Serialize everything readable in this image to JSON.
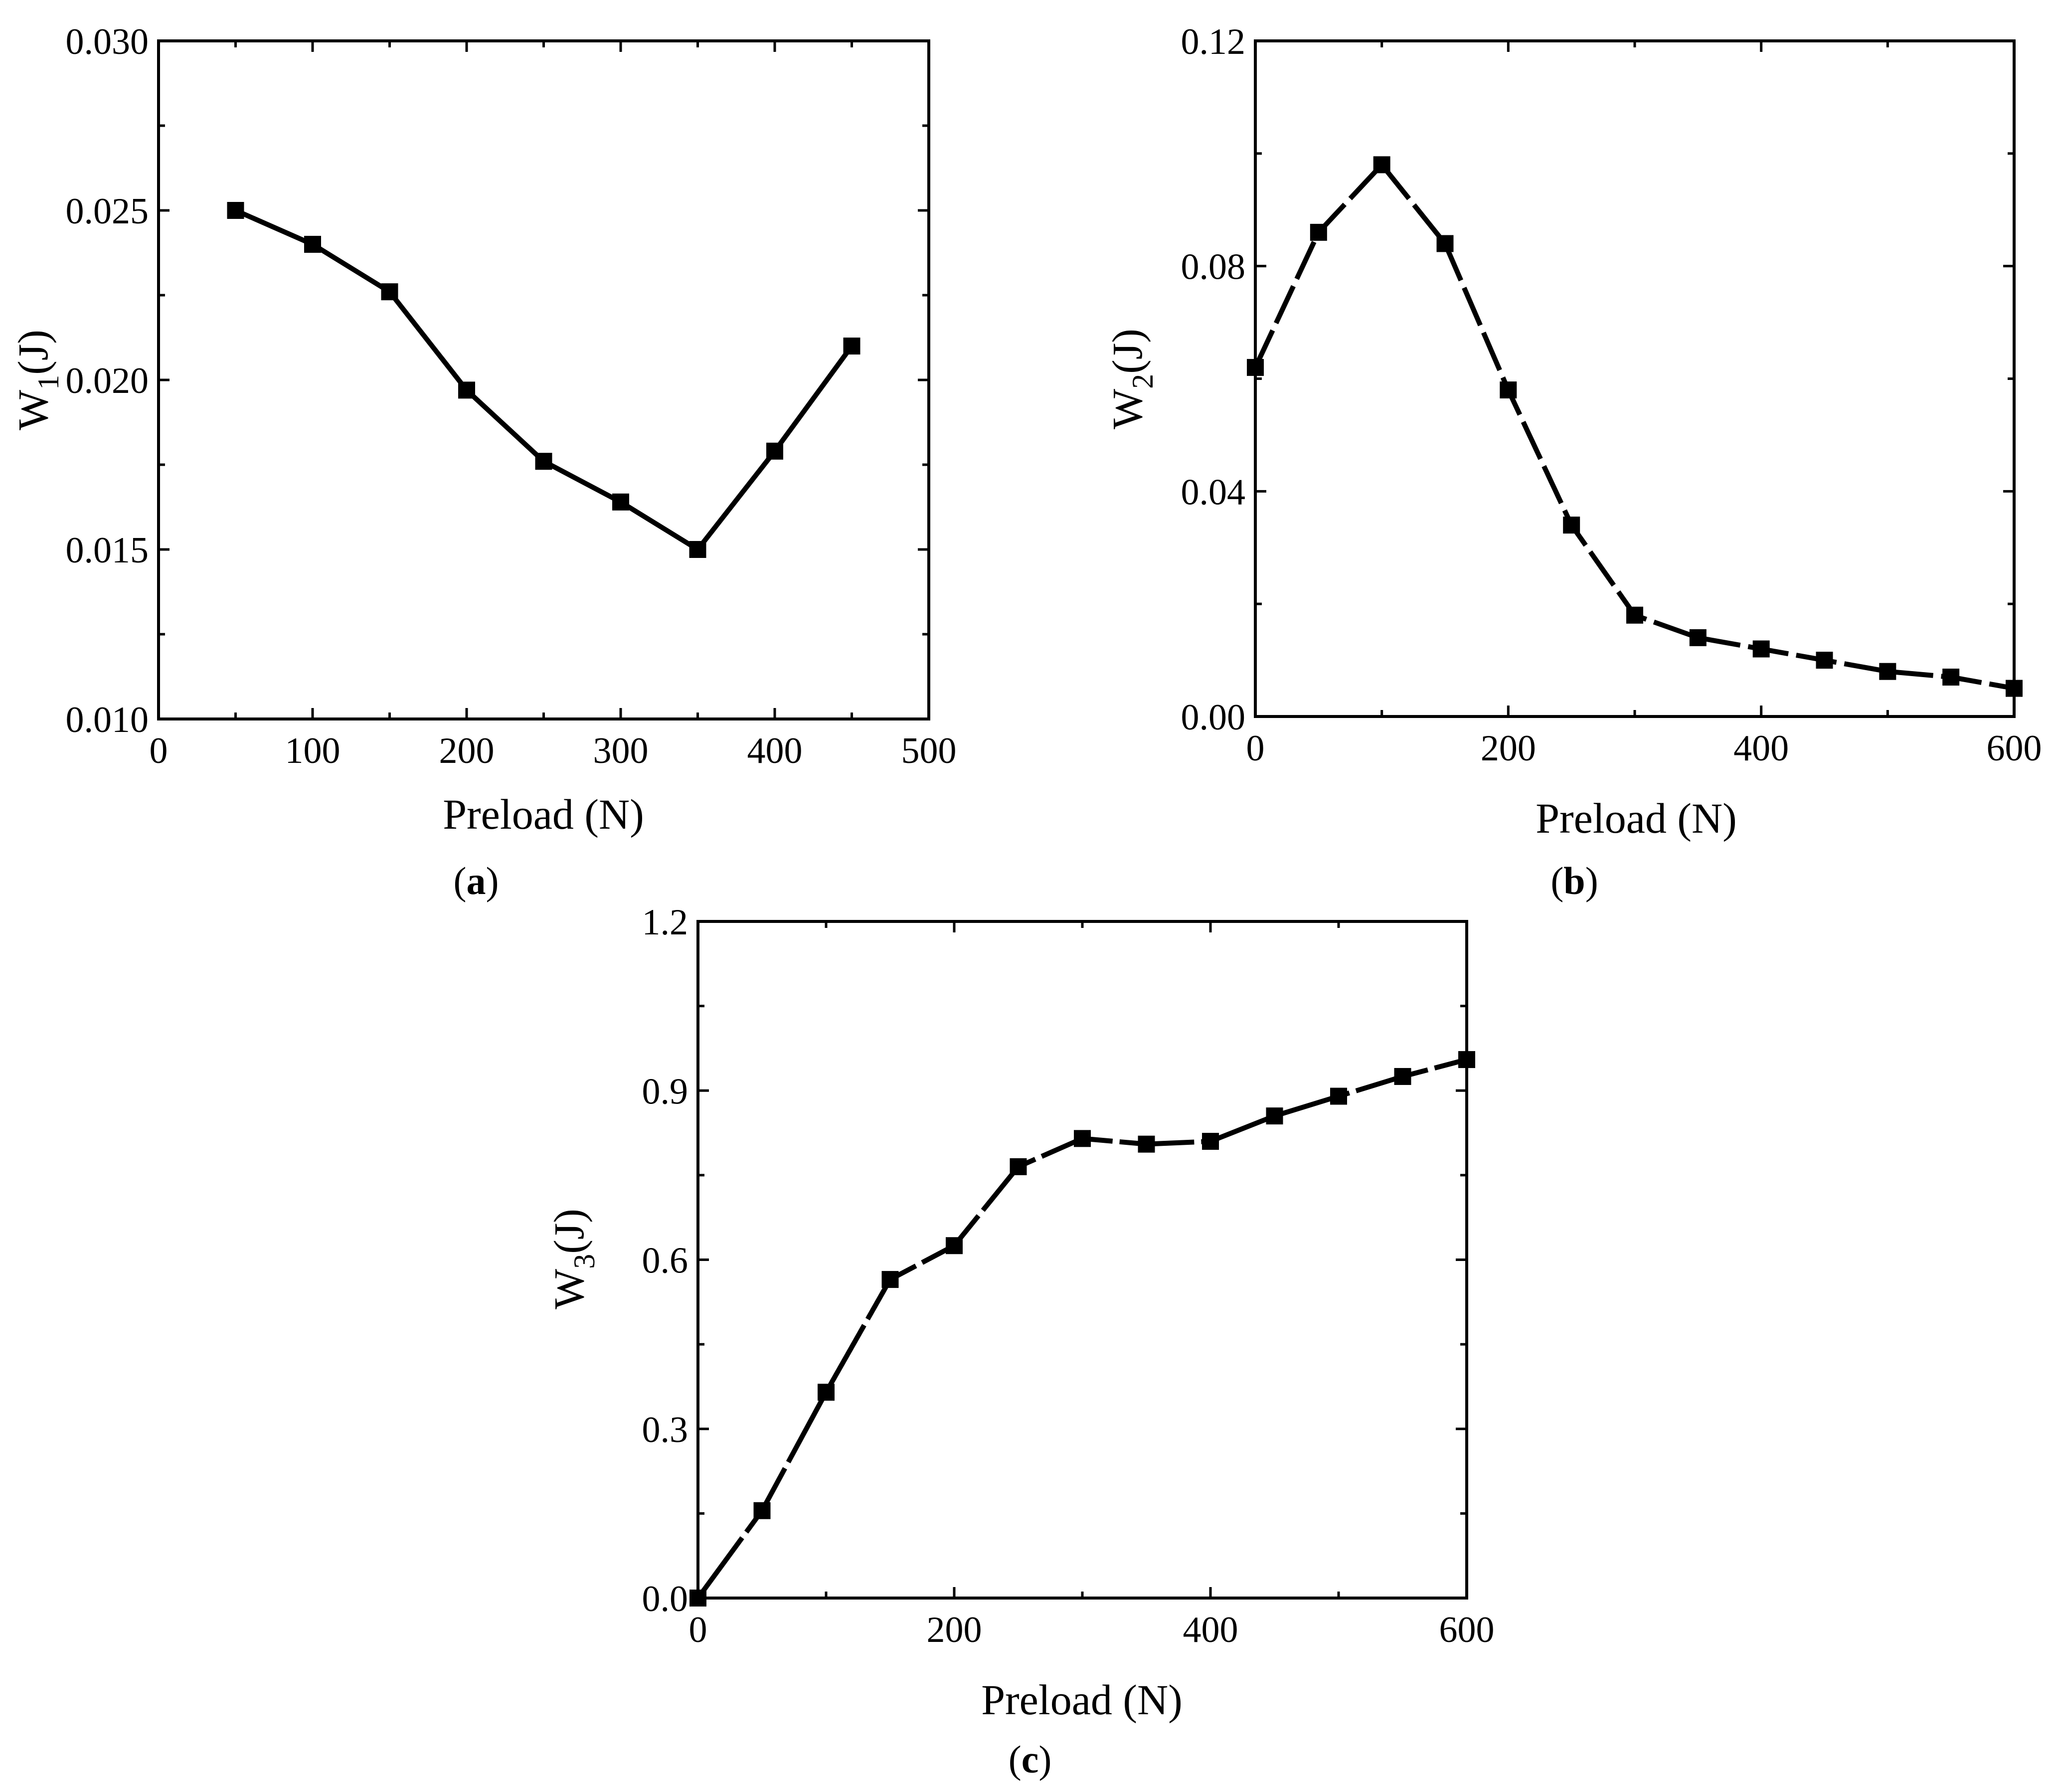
{
  "chart_data": [
    {
      "type": "line",
      "panel_label": "a",
      "title": "",
      "xlabel": "Preload (N)",
      "ylabel": {
        "main": "W",
        "sub": "1",
        "unit": "(J)"
      },
      "xlim": [
        0,
        500
      ],
      "ylim": [
        0.01,
        0.03
      ],
      "xticks": [
        0,
        100,
        200,
        300,
        400,
        500
      ],
      "xtick_labels": [
        "0",
        "100",
        "200",
        "300",
        "400",
        "500"
      ],
      "yticks": [
        0.01,
        0.015,
        0.02,
        0.025,
        0.03
      ],
      "ytick_labels": [
        "0.010",
        "0.015",
        "0.020",
        "0.025",
        "0.030"
      ],
      "grid": false,
      "marker": "square",
      "color": "#000000",
      "series": [
        {
          "name": "W1",
          "x": [
            50,
            100,
            150,
            200,
            250,
            300,
            350,
            400,
            450
          ],
          "y": [
            0.025,
            0.024,
            0.0226,
            0.0197,
            0.0176,
            0.0164,
            0.015,
            0.0179,
            0.021
          ]
        }
      ]
    },
    {
      "type": "line",
      "panel_label": "b",
      "title": "",
      "xlabel": "Preload (N)",
      "ylabel": {
        "main": "W",
        "sub": "2",
        "unit": "(J)"
      },
      "xlim": [
        0,
        600
      ],
      "ylim": [
        0.0,
        0.12
      ],
      "xticks": [
        0,
        200,
        400,
        600
      ],
      "xtick_labels": [
        "0",
        "200",
        "400",
        "600"
      ],
      "yticks": [
        0.0,
        0.04,
        0.08,
        0.12
      ],
      "ytick_labels": [
        "0.00",
        "0.04",
        "0.08",
        "0.12"
      ],
      "grid": false,
      "marker": "square",
      "color": "#000000",
      "series": [
        {
          "name": "W2",
          "x": [
            0,
            50,
            100,
            150,
            200,
            250,
            300,
            350,
            400,
            450,
            500,
            550,
            600
          ],
          "y": [
            0.062,
            0.086,
            0.098,
            0.084,
            0.058,
            0.034,
            0.018,
            0.014,
            0.012,
            0.01,
            0.008,
            0.007,
            0.005
          ]
        }
      ]
    },
    {
      "type": "line",
      "panel_label": "c",
      "title": "",
      "xlabel": "Preload (N)",
      "ylabel": {
        "main": "W",
        "sub": "3",
        "unit": "(J)"
      },
      "xlim": [
        0,
        600
      ],
      "ylim": [
        0.0,
        1.2
      ],
      "xticks": [
        0,
        200,
        400,
        600
      ],
      "xtick_labels": [
        "0",
        "200",
        "400",
        "600"
      ],
      "yticks": [
        0.0,
        0.3,
        0.6,
        0.9,
        1.2
      ],
      "ytick_labels": [
        "0.0",
        "0.3",
        "0.6",
        "0.9",
        "1.2"
      ],
      "grid": false,
      "marker": "square",
      "color": "#000000",
      "series": [
        {
          "name": "W3",
          "x": [
            0,
            50,
            100,
            150,
            200,
            250,
            300,
            350,
            400,
            450,
            500,
            550,
            600
          ],
          "y": [
            0.0,
            0.155,
            0.365,
            0.565,
            0.625,
            0.765,
            0.815,
            0.805,
            0.81,
            0.855,
            0.89,
            0.925,
            0.955
          ]
        }
      ]
    }
  ]
}
